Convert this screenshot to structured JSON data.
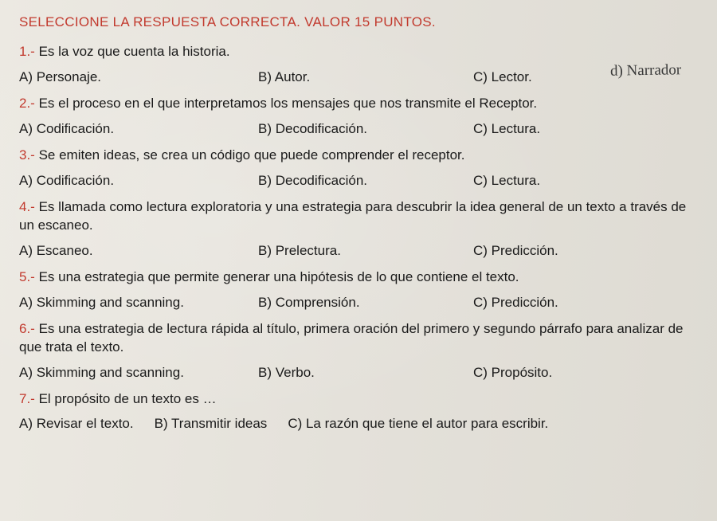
{
  "instruction": "SELECCIONE LA RESPUESTA CORRECTA. VALOR 15 PUNTOS.",
  "handwritten_d": "d) Narrador",
  "questions": [
    {
      "num": "1.-",
      "text": "Es la voz que cuenta la historia.",
      "a": "A) Personaje.",
      "b": "B) Autor.",
      "c": "C) Lector."
    },
    {
      "num": "2.-",
      "text": "Es el proceso en el que interpretamos los mensajes que nos transmite el Receptor.",
      "a": "A) Codificación.",
      "b": "B) Decodificación.",
      "c": "C) Lectura."
    },
    {
      "num": "3.-",
      "text": "Se emiten ideas, se crea un código que puede comprender el receptor.",
      "a": "A) Codificación.",
      "b": "B) Decodificación.",
      "c": "C) Lectura."
    },
    {
      "num": "4.-",
      "text": "Es llamada como lectura exploratoria y una estrategia para descubrir la idea general de un texto a través de un escaneo.",
      "a": "A) Escaneo.",
      "b": "B) Prelectura.",
      "c": "C) Predicción."
    },
    {
      "num": "5.-",
      "text": "Es una estrategia que permite generar una hipótesis de lo que contiene el texto.",
      "a": "A) Skimming and scanning.",
      "b": "B) Comprensión.",
      "c": "C) Predicción."
    },
    {
      "num": "6.-",
      "text": "Es una estrategia de lectura rápida al título, primera oración del primero y segundo párrafo para analizar de que trata el texto.",
      "a": "A) Skimming and scanning.",
      "b": "B) Verbo.",
      "c": "C) Propósito."
    },
    {
      "num": "7.-",
      "text": "El propósito de un texto es …",
      "a": "A) Revisar el texto.",
      "b": "B) Transmitir ideas",
      "c": "C) La razón que tiene el autor para escribir."
    }
  ]
}
